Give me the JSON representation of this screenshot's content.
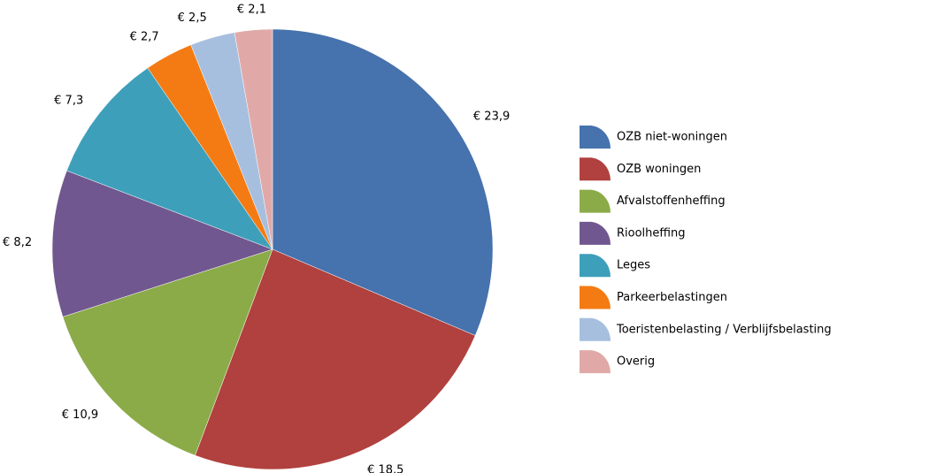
{
  "chart_data": {
    "type": "pie",
    "categories": [
      "OZB niet-woningen",
      "OZB woningen",
      "Afvalstoffenheffing",
      "Rioolheffing",
      "Leges",
      "Parkeerbelastingen",
      "Toeristenbelasting / Verblijfsbelasting",
      "Overig"
    ],
    "values": [
      23.9,
      18.5,
      10.9,
      8.2,
      7.3,
      2.7,
      2.5,
      2.1
    ],
    "value_labels": [
      "€ 23,9",
      "€ 18,5",
      "€ 10,9",
      "€ 8,2",
      "€ 7,3",
      "€ 2,7",
      "€ 2,5",
      "€ 2,1"
    ],
    "colors": [
      "#4672ad",
      "#b0413e",
      "#8bab48",
      "#71578f",
      "#3e9fba",
      "#f47b13",
      "#a7bfdf",
      "#e0a9a8"
    ],
    "legend": "right"
  }
}
